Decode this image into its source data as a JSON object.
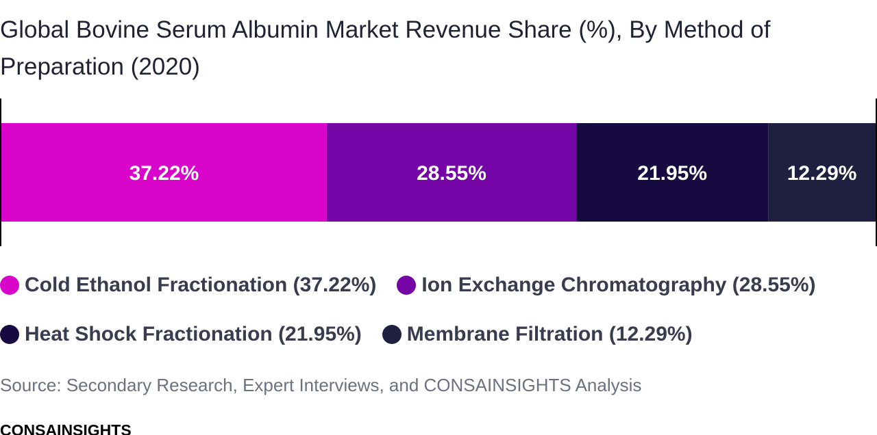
{
  "chart_data": {
    "type": "bar",
    "orientation": "horizontal-stacked",
    "title": "Global Bovine Serum Albumin Market Revenue Share (%), By Method of Preparation (2020)",
    "categories": [
      "Cold Ethanol Fractionation",
      "Ion Exchange Chromatography",
      "Heat Shock Fractionation",
      "Membrane Filtration"
    ],
    "values": [
      37.22,
      28.55,
      21.95,
      12.29
    ],
    "data_labels": [
      "37.22%",
      "28.55%",
      "21.95%",
      "12.29%"
    ],
    "colors": [
      "#d905cb",
      "#7504a6",
      "#170a40",
      "#1f1f40"
    ],
    "label_color": "#ffffff",
    "legend_position": "bottom",
    "legend_entries": [
      "Cold Ethanol Fractionation (37.22%)",
      "Ion Exchange Chromatography (28.55%)",
      "Heat Shock Fractionation (21.95%)",
      "Membrane Filtration (12.29%)"
    ],
    "xlim": [
      0,
      100
    ],
    "grid": false
  },
  "source": "Source: Secondary Research, Expert Interviews, and CONSAINSIGHTS Analysis",
  "brand": "CONSAINSIGHTS"
}
